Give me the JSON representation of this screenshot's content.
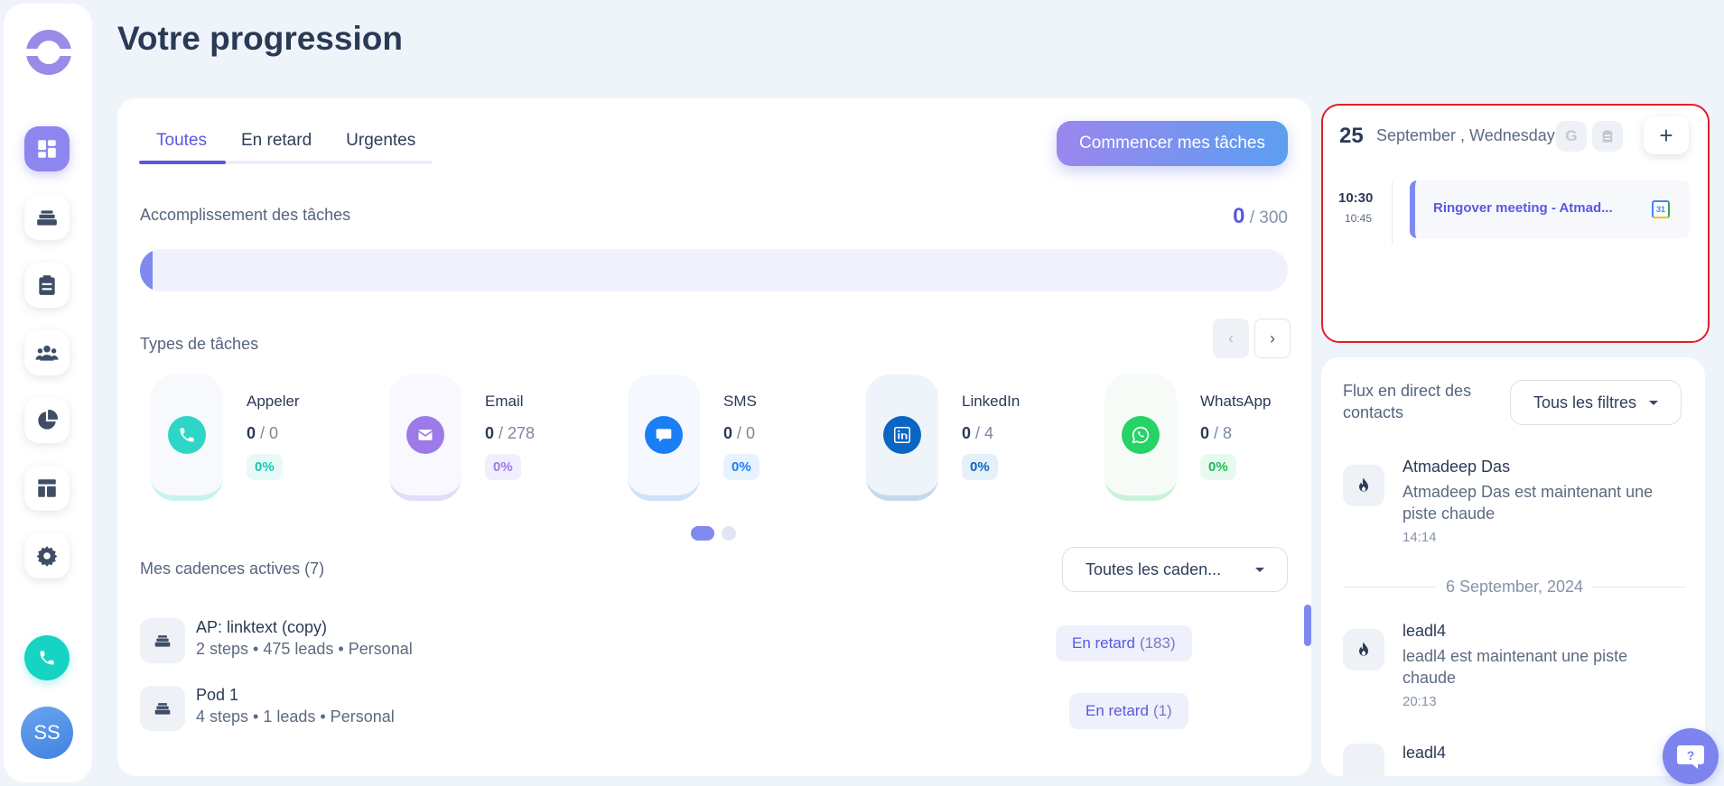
{
  "page": {
    "title": "Votre progression"
  },
  "sidebar": {
    "avatar_initials": "SS",
    "items": [
      "dashboard-icon",
      "cadences-icon",
      "tasks-icon",
      "team-icon",
      "analytics-icon",
      "templates-icon",
      "settings-icon"
    ]
  },
  "tabs": [
    "Toutes",
    "En retard",
    "Urgentes"
  ],
  "start_button": "Commencer mes tâches",
  "accomplishment": {
    "label": "Accomplissement des tâches",
    "done": "0",
    "total": "/ 300",
    "progress": 0
  },
  "task_types": {
    "label": "Types de tâches",
    "items": [
      {
        "name": "Appeler",
        "done": "0",
        "total": "/ 0",
        "pct": "0%",
        "color": "#17d3c3"
      },
      {
        "name": "Email",
        "done": "0",
        "total": "/ 278",
        "pct": "0%",
        "color": "#9c7be8"
      },
      {
        "name": "SMS",
        "done": "0",
        "total": "/ 0",
        "pct": "0%",
        "color": "#1a7ef5"
      },
      {
        "name": "LinkedIn",
        "done": "0",
        "total": "/ 4",
        "pct": "0%",
        "color": "#0a66c2"
      },
      {
        "name": "WhatsApp",
        "done": "0",
        "total": "/ 8",
        "pct": "0%",
        "color": "#25d366"
      }
    ]
  },
  "cadences": {
    "label": "Mes cadences actives (7)",
    "filter": "Toutes les caden...",
    "rows": [
      {
        "name": "AP: linktext (copy)",
        "meta": "2 steps • 475 leads • Personal",
        "status": "En retard",
        "count": "(183)"
      },
      {
        "name": "Pod 1",
        "meta": "4 steps • 1 leads • Personal",
        "status": "En retard",
        "count": "(1)"
      }
    ]
  },
  "calendar": {
    "day": "25",
    "date": "September , Wednesday",
    "event": {
      "start": "10:30",
      "end": "10:45",
      "title": "Ringover meeting - Atmad..."
    }
  },
  "feed": {
    "title": "Flux en direct des contacts",
    "filter": "Tous les filtres",
    "items": [
      {
        "name": "Atmadeep Das",
        "desc": "Atmadeep Das est maintenant une piste chaude",
        "time": "14:14"
      },
      {
        "name": "leadl4",
        "desc": "leadl4 est maintenant une piste chaude",
        "time": "20:13"
      },
      {
        "name": "leadl4"
      }
    ],
    "date_separator": "6 September, 2024"
  }
}
